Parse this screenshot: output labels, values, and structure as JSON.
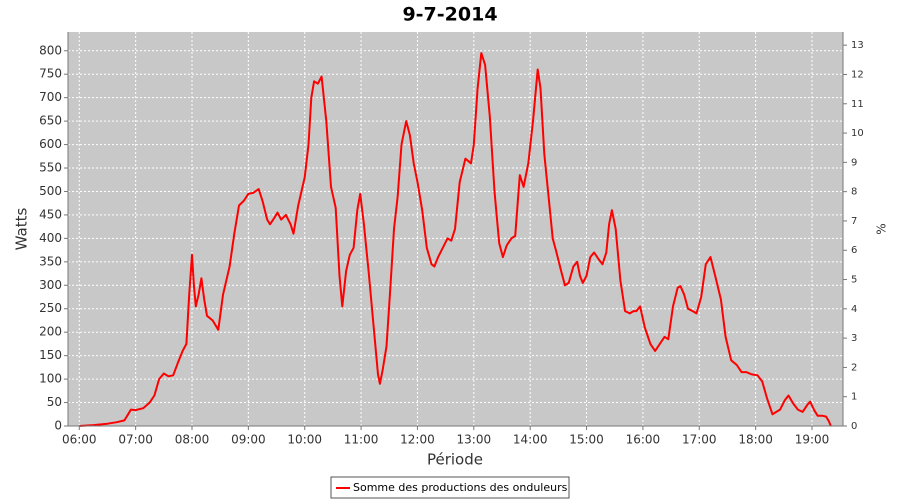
{
  "chart_data": {
    "type": "line",
    "title": "9-7-2014",
    "x_label": "Période",
    "y_label": "Watts",
    "y2_label": "%",
    "x": [
      "06:00",
      "06:15",
      "06:30",
      "06:40",
      "06:48",
      "06:52",
      "06:55",
      "07:00",
      "07:08",
      "07:15",
      "07:20",
      "07:25",
      "07:30",
      "07:35",
      "07:40",
      "07:45",
      "07:50",
      "07:54",
      "07:57",
      "08:00",
      "08:02",
      "08:04",
      "08:07",
      "08:10",
      "08:13",
      "08:16",
      "08:22",
      "08:28",
      "08:33",
      "08:40",
      "08:45",
      "08:50",
      "08:55",
      "09:00",
      "09:05",
      "09:11",
      "09:15",
      "09:20",
      "09:23",
      "09:28",
      "09:31",
      "09:35",
      "09:40",
      "09:45",
      "09:48",
      "09:53",
      "10:00",
      "10:04",
      "10:07",
      "10:10",
      "10:14",
      "10:18",
      "10:23",
      "10:28",
      "10:33",
      "10:37",
      "10:40",
      "10:44",
      "10:48",
      "10:52",
      "10:56",
      "10:59",
      "11:03",
      "11:08",
      "11:13",
      "11:18",
      "11:20",
      "11:23",
      "11:27",
      "11:31",
      "11:35",
      "11:39",
      "11:43",
      "11:48",
      "11:52",
      "11:56",
      "12:00",
      "12:05",
      "12:10",
      "12:15",
      "12:18",
      "12:22",
      "12:27",
      "12:32",
      "12:36",
      "12:40",
      "12:45",
      "12:51",
      "12:57",
      "13:00",
      "13:04",
      "13:08",
      "13:12",
      "13:17",
      "13:22",
      "13:27",
      "13:31",
      "13:35",
      "13:40",
      "13:44",
      "13:49",
      "13:53",
      "13:58",
      "14:03",
      "14:08",
      "14:11",
      "14:15",
      "14:20",
      "14:24",
      "14:28",
      "14:33",
      "14:37",
      "14:41",
      "14:46",
      "14:50",
      "14:53",
      "14:56",
      "15:00",
      "15:04",
      "15:08",
      "15:13",
      "15:17",
      "15:21",
      "15:24",
      "15:27",
      "15:31",
      "15:36",
      "15:41",
      "15:46",
      "15:50",
      "15:53",
      "15:57",
      "16:02",
      "16:08",
      "16:13",
      "16:18",
      "16:23",
      "16:27",
      "16:32",
      "16:37",
      "16:40",
      "16:44",
      "16:48",
      "16:53",
      "16:57",
      "17:02",
      "17:07",
      "17:12",
      "17:17",
      "17:23",
      "17:28",
      "17:34",
      "17:40",
      "17:45",
      "17:50",
      "17:56",
      "18:02",
      "18:07",
      "18:12",
      "18:18",
      "18:22",
      "18:26",
      "18:31",
      "18:35",
      "18:40",
      "18:45",
      "18:50",
      "18:55",
      "18:58",
      "19:02",
      "19:06",
      "19:11",
      "19:15",
      "19:18",
      "19:20"
    ],
    "series": [
      {
        "name": "Somme des productions des onduleurs",
        "color": "#ff0000",
        "values": [
          0,
          2,
          5,
          8,
          12,
          25,
          35,
          34,
          38,
          50,
          65,
          100,
          112,
          106,
          108,
          135,
          160,
          175,
          280,
          365,
          300,
          255,
          280,
          315,
          270,
          235,
          225,
          205,
          280,
          340,
          410,
          470,
          480,
          495,
          497,
          505,
          480,
          440,
          430,
          445,
          455,
          440,
          450,
          430,
          410,
          470,
          530,
          600,
          700,
          735,
          730,
          745,
          650,
          510,
          465,
          320,
          255,
          330,
          365,
          380,
          460,
          495,
          430,
          330,
          220,
          110,
          90,
          120,
          170,
          290,
          420,
          490,
          600,
          650,
          620,
          560,
          520,
          460,
          380,
          345,
          340,
          360,
          380,
          400,
          395,
          420,
          520,
          570,
          560,
          600,
          720,
          795,
          770,
          660,
          500,
          390,
          360,
          385,
          400,
          405,
          535,
          510,
          560,
          650,
          760,
          720,
          580,
          480,
          400,
          370,
          330,
          300,
          305,
          340,
          350,
          320,
          305,
          320,
          360,
          370,
          355,
          345,
          370,
          430,
          460,
          420,
          310,
          245,
          240,
          245,
          245,
          255,
          210,
          175,
          160,
          175,
          190,
          185,
          255,
          295,
          298,
          280,
          250,
          245,
          240,
          275,
          345,
          360,
          320,
          270,
          190,
          140,
          130,
          115,
          115,
          110,
          108,
          95,
          60,
          25,
          30,
          35,
          55,
          65,
          48,
          35,
          30,
          45,
          52,
          35,
          22,
          22,
          20,
          10,
          0
        ]
      }
    ],
    "xlim": [
      "05:48",
      "19:33"
    ],
    "xticks": [
      "06:00",
      "07:00",
      "08:00",
      "09:00",
      "10:00",
      "11:00",
      "12:00",
      "13:00",
      "14:00",
      "15:00",
      "16:00",
      "17:00",
      "18:00",
      "19:00"
    ],
    "ylim": [
      0,
      840
    ],
    "yticks": [
      0,
      50,
      100,
      150,
      200,
      250,
      300,
      350,
      400,
      450,
      500,
      550,
      600,
      650,
      700,
      750,
      800
    ],
    "y2lim": [
      0,
      13.45
    ],
    "y2ticks": [
      0,
      1,
      2,
      3,
      4,
      5,
      6,
      7,
      8,
      9,
      10,
      11,
      12,
      13
    ],
    "grid": true
  }
}
